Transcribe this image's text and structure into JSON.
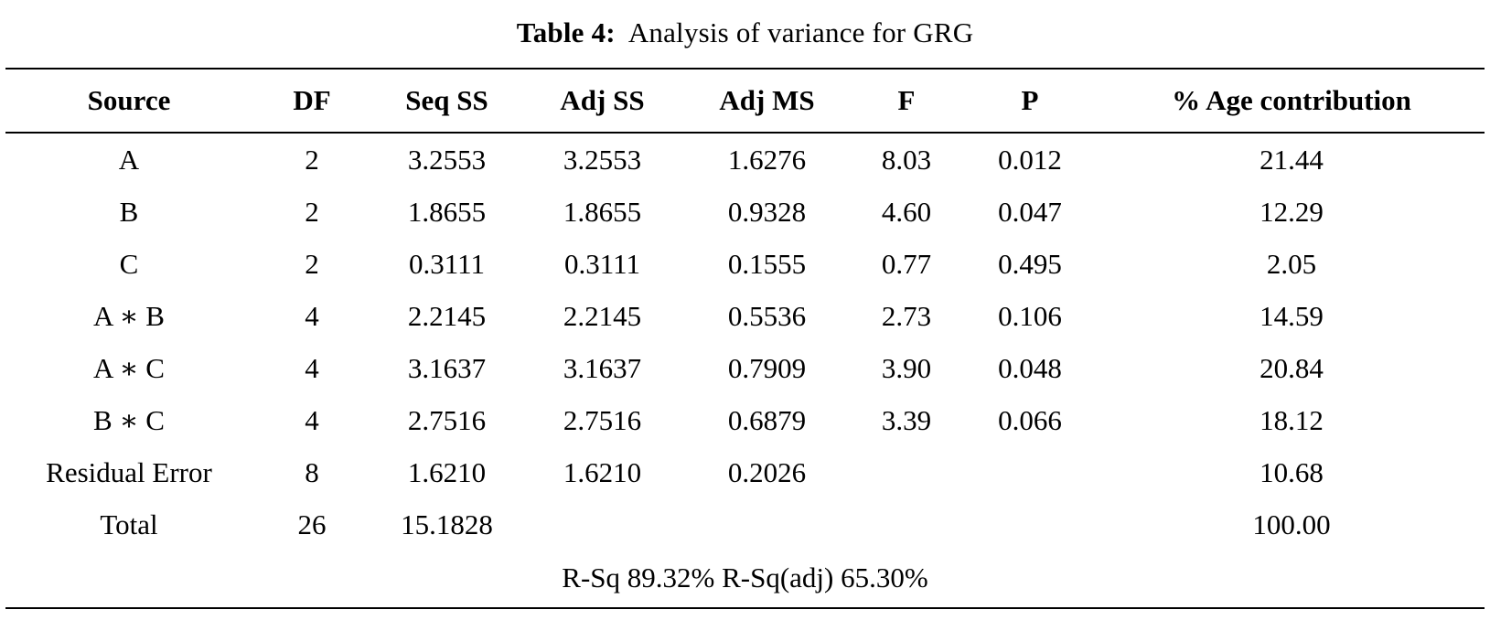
{
  "caption": {
    "label": "Table 4:",
    "title": "Analysis of variance for GRG"
  },
  "table": {
    "headers": [
      "Source",
      "DF",
      "Seq SS",
      "Adj SS",
      "Adj MS",
      "F",
      "P",
      "% Age contribution"
    ],
    "rows": [
      {
        "cells": [
          "A",
          "2",
          "3.2553",
          "3.2553",
          "1.6276",
          "8.03",
          "0.012",
          "21.44"
        ]
      },
      {
        "cells": [
          "B",
          "2",
          "1.8655",
          "1.8655",
          "0.9328",
          "4.60",
          "0.047",
          "12.29"
        ]
      },
      {
        "cells": [
          "C",
          "2",
          "0.3111",
          "0.3111",
          "0.1555",
          "0.77",
          "0.495",
          "2.05"
        ]
      },
      {
        "cells": [
          "A ∗ B",
          "4",
          "2.2145",
          "2.2145",
          "0.5536",
          "2.73",
          "0.106",
          "14.59"
        ]
      },
      {
        "cells": [
          "A ∗ C",
          "4",
          "3.1637",
          "3.1637",
          "0.7909",
          "3.90",
          "0.048",
          "20.84"
        ]
      },
      {
        "cells": [
          "B ∗ C",
          "4",
          "2.7516",
          "2.7516",
          "0.6879",
          "3.39",
          "0.066",
          "18.12"
        ]
      },
      {
        "cells": [
          "Residual Error",
          "8",
          "1.6210",
          "1.6210",
          "0.2026",
          "",
          "",
          "10.68"
        ]
      },
      {
        "cells": [
          "Total",
          "26",
          "15.1828",
          "",
          "",
          "",
          "",
          "100.00"
        ]
      }
    ],
    "footer": "R-Sq 89.32% R-Sq(adj) 65.30%"
  }
}
